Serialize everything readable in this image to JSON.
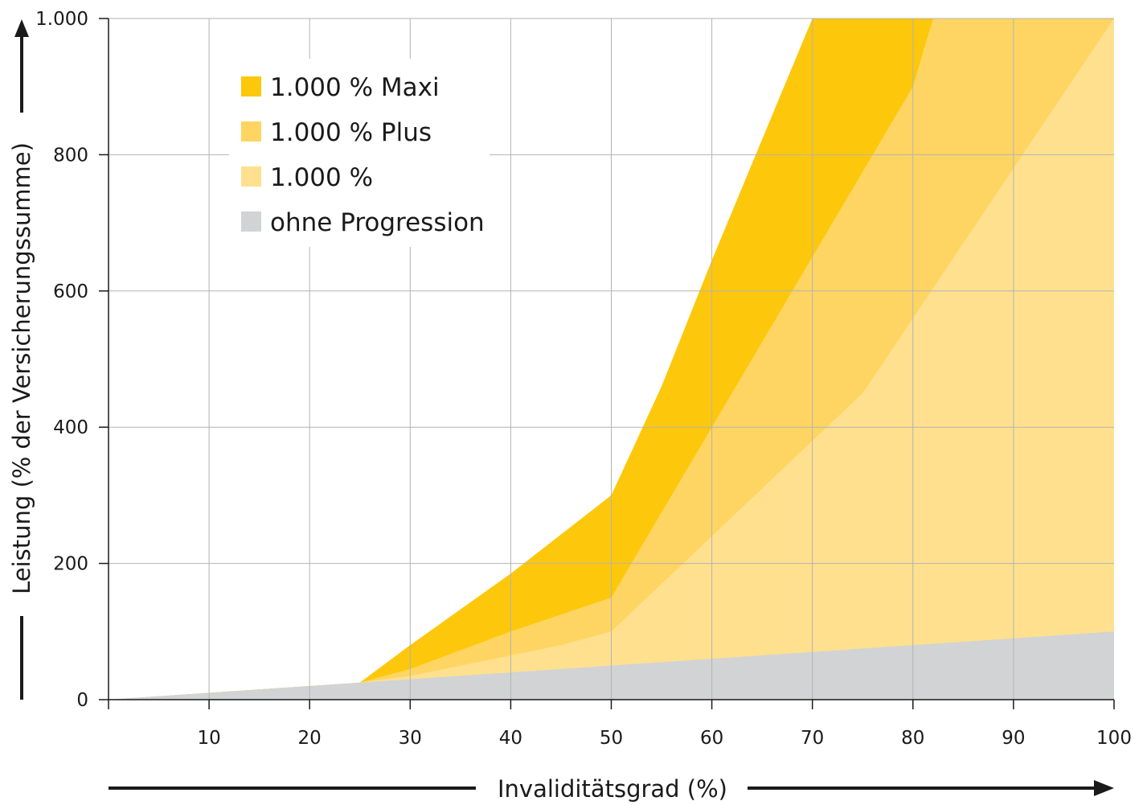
{
  "chart_data": {
    "type": "area",
    "xlabel": "Invaliditätsgrad (%)",
    "ylabel": "Leistung (% der Versicherungssumme)",
    "xlim": [
      0,
      100
    ],
    "ylim": [
      0,
      1000
    ],
    "x_ticks": [
      10,
      20,
      30,
      40,
      50,
      60,
      70,
      80,
      90,
      100
    ],
    "x_tick_labels": [
      "10",
      "20",
      "30",
      "40",
      "50",
      "60",
      "70",
      "80",
      "90",
      "100"
    ],
    "y_ticks": [
      0,
      200,
      400,
      600,
      800,
      1000
    ],
    "y_tick_labels": [
      "0",
      "200",
      "400",
      "600",
      "800",
      "1.000"
    ],
    "grid": true,
    "legend_position": "top-left",
    "series": [
      {
        "name": "1.000 % Maxi",
        "color": "#FDC70C",
        "points": [
          [
            0,
            0
          ],
          [
            25,
            25
          ],
          [
            30,
            80
          ],
          [
            40,
            185
          ],
          [
            50,
            300
          ],
          [
            55,
            460
          ],
          [
            60,
            645
          ],
          [
            70,
            1000
          ],
          [
            100,
            1000
          ]
        ]
      },
      {
        "name": "1.000 % Plus",
        "color": "#FED562",
        "points": [
          [
            0,
            0
          ],
          [
            25,
            25
          ],
          [
            30,
            45
          ],
          [
            40,
            100
          ],
          [
            50,
            150
          ],
          [
            60,
            400
          ],
          [
            70,
            650
          ],
          [
            80,
            900
          ],
          [
            82,
            1000
          ],
          [
            100,
            1000
          ]
        ]
      },
      {
        "name": "1.000 %",
        "color": "#FEE08E",
        "points": [
          [
            0,
            0
          ],
          [
            25,
            25
          ],
          [
            30,
            35
          ],
          [
            45,
            80
          ],
          [
            50,
            100
          ],
          [
            60,
            240
          ],
          [
            75,
            450
          ],
          [
            100,
            1000
          ]
        ]
      },
      {
        "name": "ohne Progression",
        "color": "#D1D3D5",
        "points": [
          [
            0,
            0
          ],
          [
            100,
            100
          ]
        ]
      }
    ]
  },
  "colors": {
    "grid": "#b3b3b3",
    "axis": "#1a1a1a",
    "background": "#ffffff"
  }
}
